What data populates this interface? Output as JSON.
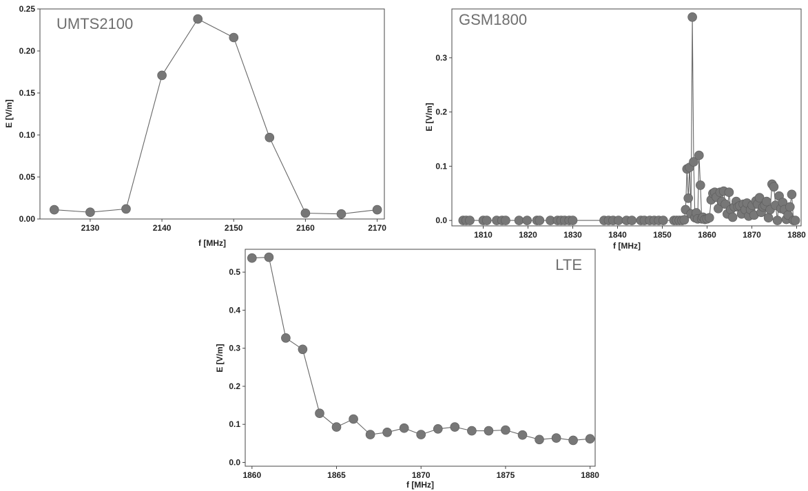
{
  "style": {
    "marker_color": "#777777",
    "line_color": "#666666",
    "frame_color": "#444444"
  },
  "chart_data": [
    {
      "type": "line",
      "title": "UMTS2100",
      "xlabel": "f [MHz]",
      "ylabel": "E [V/m]",
      "xlim": [
        2123,
        2171
      ],
      "ylim": [
        0.0,
        0.25
      ],
      "xticks": [
        2130,
        2140,
        2150,
        2160,
        2170
      ],
      "yticks": [
        0.0,
        0.05,
        0.1,
        0.15,
        0.2,
        0.25
      ],
      "ytick_labels": [
        "0.00",
        "0.05",
        "0.10",
        "0.15",
        "0.20",
        "0.25"
      ],
      "xtick_labels": [
        "2130",
        "2140",
        "2150",
        "2160",
        "2170"
      ],
      "grid": false,
      "series": [
        {
          "x": [
            2125,
            2130,
            2135,
            2140,
            2145,
            2150,
            2155,
            2160,
            2165,
            2170
          ],
          "y": [
            0.011,
            0.008,
            0.012,
            0.171,
            0.238,
            0.216,
            0.097,
            0.007,
            0.006,
            0.011
          ]
        }
      ]
    },
    {
      "type": "line",
      "title": "GSM1800",
      "xlabel": "f [MHz]",
      "ylabel": "E [V/m]",
      "xlim": [
        1803,
        1881
      ],
      "ylim": [
        -0.01,
        0.39
      ],
      "xticks": [
        1810,
        1820,
        1830,
        1840,
        1850,
        1860,
        1870,
        1880
      ],
      "yticks": [
        0.0,
        0.1,
        0.2,
        0.3
      ],
      "ytick_labels": [
        "0.0",
        "0.1",
        "0.2",
        "0.3"
      ],
      "xtick_labels": [
        "1810",
        "1820",
        "1830",
        "1840",
        "1850",
        "1860",
        "1870",
        "1880"
      ],
      "grid": false,
      "series": [
        {
          "x": [
            1805.5,
            1806.2,
            1807.0,
            1810.0,
            1810.8,
            1813.0,
            1814.2,
            1815.0,
            1818.0,
            1819.8,
            1822.0,
            1822.6,
            1825.0,
            1826.6,
            1827.4,
            1828.2,
            1829.2,
            1830.0,
            1837.0,
            1838.0,
            1839.0,
            1840.2,
            1842.0,
            1843.2,
            1845.2,
            1846.0,
            1847.2,
            1848.2,
            1849.2,
            1850.2,
            1852.6,
            1853.2,
            1853.8,
            1854.4,
            1854.9,
            1855.2,
            1855.5,
            1855.8,
            1856.1,
            1856.4,
            1856.7,
            1857.0,
            1857.3,
            1857.6,
            1857.9,
            1858.2,
            1858.5,
            1858.8,
            1859.1,
            1859.5,
            1860.0,
            1860.5,
            1860.9,
            1861.3,
            1861.7,
            1862.1,
            1862.5,
            1862.9,
            1863.3,
            1863.7,
            1864.1,
            1864.5,
            1864.9,
            1865.3,
            1865.7,
            1866.1,
            1866.5,
            1866.9,
            1867.3,
            1867.7,
            1868.1,
            1868.5,
            1868.9,
            1869.3,
            1869.7,
            1870.1,
            1870.5,
            1870.9,
            1871.3,
            1871.7,
            1872.1,
            1872.5,
            1872.9,
            1873.3,
            1873.7,
            1874.1,
            1874.5,
            1874.9,
            1875.3,
            1875.7,
            1876.1,
            1876.5,
            1876.9,
            1877.3,
            1877.7,
            1878.1,
            1878.5,
            1878.9,
            1879.3,
            1879.7
          ],
          "y": [
            0.0,
            0.0,
            0.0,
            0.0,
            0.0,
            0.0,
            0.0,
            0.0,
            0.0,
            0.0,
            0.0,
            0.0,
            0.0,
            0.0,
            0.0,
            0.0,
            0.0,
            0.0,
            0.0,
            0.0,
            0.0,
            0.0,
            0.0,
            0.0,
            0.0,
            0.0,
            0.0,
            0.0,
            0.0,
            0.0,
            0.0,
            0.0,
            0.0,
            0.0,
            0.001,
            0.02,
            0.095,
            0.041,
            0.098,
            0.012,
            0.375,
            0.108,
            0.005,
            0.014,
            0.003,
            0.12,
            0.065,
            0.003,
            0.006,
            0.002,
            0.003,
            0.005,
            0.038,
            0.05,
            0.052,
            0.043,
            0.022,
            0.052,
            0.035,
            0.054,
            0.03,
            0.012,
            0.052,
            0.02,
            0.006,
            0.025,
            0.035,
            0.025,
            0.027,
            0.012,
            0.03,
            0.02,
            0.032,
            0.008,
            0.02,
            0.028,
            0.01,
            0.036,
            0.03,
            0.042,
            0.015,
            0.025,
            0.028,
            0.035,
            0.005,
            0.02,
            0.067,
            0.062,
            0.028,
            0.0,
            0.045,
            0.022,
            0.033,
            0.02,
            0.002,
            0.01,
            0.025,
            0.048,
            0.0,
            0.0
          ]
        }
      ]
    },
    {
      "type": "line",
      "title": "LTE",
      "xlabel": "f [MHz]",
      "ylabel": "E [V/m]",
      "xlim": [
        1859.6,
        1880.3
      ],
      "ylim": [
        -0.01,
        0.56
      ],
      "xticks": [
        1860,
        1865,
        1870,
        1875,
        1880
      ],
      "yticks": [
        0.0,
        0.1,
        0.2,
        0.3,
        0.4,
        0.5
      ],
      "ytick_labels": [
        "0.0",
        "0.1",
        "0.2",
        "0.3",
        "0.4",
        "0.5"
      ],
      "xtick_labels": [
        "1860",
        "1865",
        "1870",
        "1875",
        "1880"
      ],
      "grid": false,
      "series": [
        {
          "x": [
            1860,
            1861,
            1862,
            1863,
            1864,
            1865,
            1866,
            1867,
            1868,
            1869,
            1870,
            1871,
            1872,
            1873,
            1874,
            1875,
            1876,
            1877,
            1878,
            1879,
            1880
          ],
          "y": [
            0.537,
            0.539,
            0.327,
            0.297,
            0.129,
            0.093,
            0.114,
            0.073,
            0.079,
            0.09,
            0.073,
            0.088,
            0.093,
            0.083,
            0.083,
            0.085,
            0.072,
            0.06,
            0.064,
            0.058,
            0.062
          ]
        }
      ]
    }
  ]
}
